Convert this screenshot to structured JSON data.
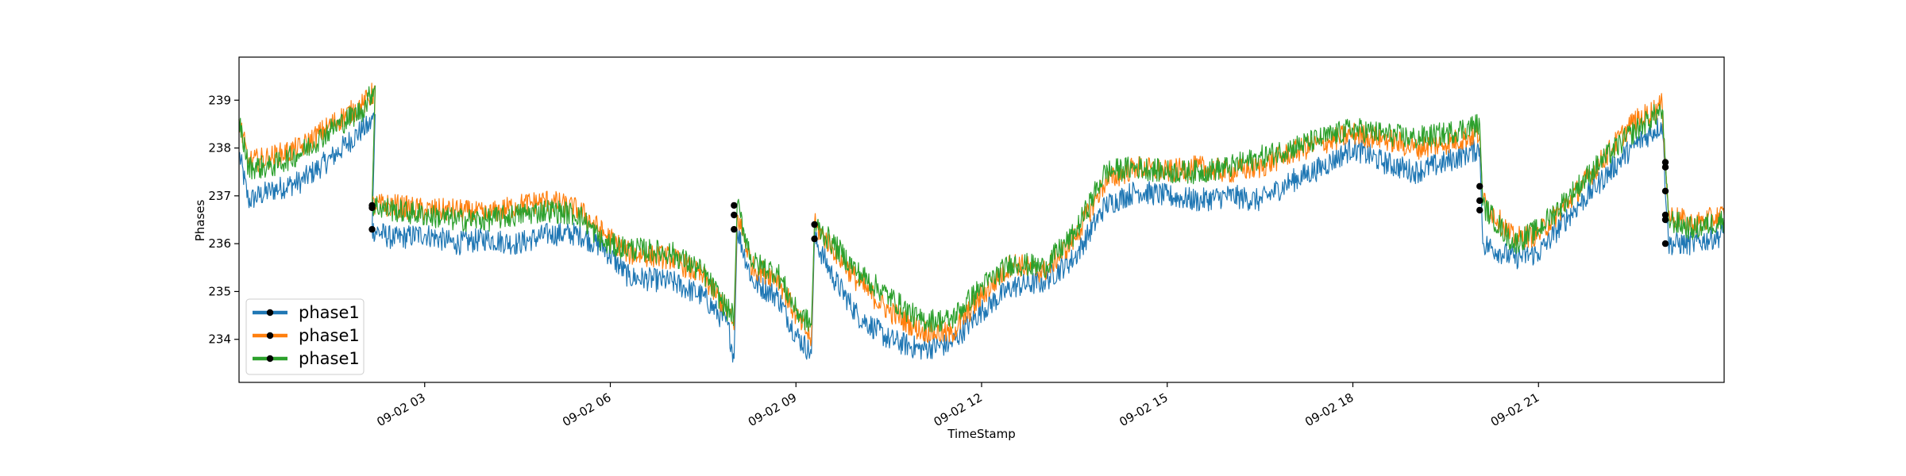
{
  "chart_data": {
    "type": "line",
    "title": "",
    "xlabel": "TimeStamp",
    "ylabel": "Phases",
    "ylim": [
      233.1,
      239.9
    ],
    "x_range": [
      "09-02 00:00",
      "09-03 00:00"
    ],
    "x_ticks": [
      {
        "hour": 3,
        "label": "09-02 03"
      },
      {
        "hour": 6,
        "label": "09-02 06"
      },
      {
        "hour": 9,
        "label": "09-02 09"
      },
      {
        "hour": 12,
        "label": "09-02 12"
      },
      {
        "hour": 15,
        "label": "09-02 15"
      },
      {
        "hour": 18,
        "label": "09-02 18"
      },
      {
        "hour": 21,
        "label": "09-02 21"
      }
    ],
    "y_ticks": [
      234,
      235,
      236,
      237,
      238,
      239
    ],
    "grid": false,
    "legend": {
      "position": "lower-left"
    },
    "series": [
      {
        "name": "phase1",
        "color": "#1f77b4",
        "points": [
          [
            0.0,
            237.9
          ],
          [
            0.15,
            236.9
          ],
          [
            0.5,
            237.1
          ],
          [
            1.0,
            237.3
          ],
          [
            1.5,
            237.8
          ],
          [
            2.0,
            238.4
          ],
          [
            2.1,
            238.45
          ],
          [
            2.2,
            238.7
          ],
          [
            2.15,
            236.3
          ],
          [
            2.5,
            236.1
          ],
          [
            3.0,
            236.2
          ],
          [
            3.5,
            236.0
          ],
          [
            4.0,
            236.1
          ],
          [
            4.5,
            236.0
          ],
          [
            5.0,
            236.2
          ],
          [
            5.5,
            236.2
          ],
          [
            5.9,
            235.9
          ],
          [
            6.3,
            235.3
          ],
          [
            7.0,
            235.2
          ],
          [
            7.5,
            234.9
          ],
          [
            7.9,
            234.3
          ],
          [
            8.0,
            233.6
          ],
          [
            8.05,
            236.3
          ],
          [
            8.3,
            235.2
          ],
          [
            8.7,
            234.9
          ],
          [
            9.0,
            234.1
          ],
          [
            9.25,
            233.7
          ],
          [
            9.3,
            236.1
          ],
          [
            9.6,
            235.3
          ],
          [
            10.0,
            234.5
          ],
          [
            10.5,
            234.0
          ],
          [
            11.0,
            233.8
          ],
          [
            11.5,
            233.9
          ],
          [
            12.0,
            234.6
          ],
          [
            12.5,
            235.1
          ],
          [
            13.0,
            235.2
          ],
          [
            13.5,
            235.7
          ],
          [
            14.0,
            236.8
          ],
          [
            14.5,
            237.1
          ],
          [
            15.0,
            237.0
          ],
          [
            15.5,
            236.9
          ],
          [
            16.0,
            237.0
          ],
          [
            16.5,
            236.9
          ],
          [
            17.0,
            237.3
          ],
          [
            17.5,
            237.6
          ],
          [
            18.0,
            238.0
          ],
          [
            18.5,
            237.7
          ],
          [
            19.0,
            237.5
          ],
          [
            19.5,
            237.7
          ],
          [
            20.05,
            238.0
          ],
          [
            20.1,
            236.0
          ],
          [
            20.6,
            235.7
          ],
          [
            21.0,
            235.8
          ],
          [
            21.5,
            236.6
          ],
          [
            22.0,
            237.3
          ],
          [
            22.5,
            238.0
          ],
          [
            23.0,
            238.5
          ],
          [
            23.1,
            236.0
          ],
          [
            23.5,
            236.0
          ],
          [
            24.0,
            236.2
          ]
        ]
      },
      {
        "name": "phase1",
        "color": "#ff7f0e",
        "points": [
          [
            0.0,
            238.6
          ],
          [
            0.15,
            237.7
          ],
          [
            0.5,
            237.8
          ],
          [
            1.0,
            238.0
          ],
          [
            1.5,
            238.5
          ],
          [
            2.0,
            238.9
          ],
          [
            2.2,
            239.2
          ],
          [
            2.15,
            236.8
          ],
          [
            2.5,
            236.8
          ],
          [
            3.0,
            236.7
          ],
          [
            3.5,
            236.7
          ],
          [
            4.0,
            236.6
          ],
          [
            4.5,
            236.8
          ],
          [
            5.0,
            236.9
          ],
          [
            5.5,
            236.7
          ],
          [
            5.9,
            236.2
          ],
          [
            6.3,
            235.8
          ],
          [
            7.0,
            235.7
          ],
          [
            7.5,
            235.3
          ],
          [
            7.9,
            234.6
          ],
          [
            8.0,
            234.2
          ],
          [
            8.05,
            236.6
          ],
          [
            8.3,
            235.5
          ],
          [
            8.7,
            235.3
          ],
          [
            9.0,
            234.5
          ],
          [
            9.25,
            234.0
          ],
          [
            9.3,
            236.4
          ],
          [
            9.6,
            235.9
          ],
          [
            10.0,
            235.2
          ],
          [
            10.5,
            234.6
          ],
          [
            11.0,
            234.2
          ],
          [
            11.5,
            234.1
          ],
          [
            12.0,
            234.9
          ],
          [
            12.5,
            235.6
          ],
          [
            13.0,
            235.4
          ],
          [
            13.5,
            236.1
          ],
          [
            14.0,
            237.3
          ],
          [
            14.5,
            237.6
          ],
          [
            15.0,
            237.5
          ],
          [
            15.5,
            237.6
          ],
          [
            16.0,
            237.5
          ],
          [
            16.5,
            237.6
          ],
          [
            17.0,
            237.9
          ],
          [
            17.5,
            238.1
          ],
          [
            18.0,
            238.3
          ],
          [
            18.5,
            238.2
          ],
          [
            19.0,
            238.0
          ],
          [
            19.5,
            238.1
          ],
          [
            20.05,
            238.3
          ],
          [
            20.1,
            236.9
          ],
          [
            20.6,
            236.1
          ],
          [
            21.0,
            236.2
          ],
          [
            21.5,
            236.9
          ],
          [
            22.0,
            237.7
          ],
          [
            22.5,
            238.5
          ],
          [
            23.0,
            238.9
          ],
          [
            23.1,
            236.6
          ],
          [
            23.5,
            236.4
          ],
          [
            24.0,
            236.6
          ]
        ]
      },
      {
        "name": "phase1",
        "color": "#2ca02c",
        "points": [
          [
            0.0,
            238.6
          ],
          [
            0.15,
            237.6
          ],
          [
            0.5,
            237.6
          ],
          [
            1.0,
            237.9
          ],
          [
            1.5,
            238.4
          ],
          [
            2.0,
            238.8
          ],
          [
            2.2,
            239.3
          ],
          [
            2.15,
            236.8
          ],
          [
            2.5,
            236.7
          ],
          [
            3.0,
            236.6
          ],
          [
            3.5,
            236.5
          ],
          [
            4.0,
            236.5
          ],
          [
            4.5,
            236.6
          ],
          [
            5.0,
            236.7
          ],
          [
            5.5,
            236.6
          ],
          [
            5.9,
            236.0
          ],
          [
            6.3,
            235.9
          ],
          [
            7.0,
            235.8
          ],
          [
            7.5,
            235.4
          ],
          [
            7.9,
            234.6
          ],
          [
            8.0,
            234.5
          ],
          [
            8.05,
            236.8
          ],
          [
            8.3,
            235.6
          ],
          [
            8.7,
            235.4
          ],
          [
            9.0,
            234.6
          ],
          [
            9.25,
            234.3
          ],
          [
            9.3,
            236.4
          ],
          [
            9.6,
            236.0
          ],
          [
            10.0,
            235.4
          ],
          [
            10.5,
            234.9
          ],
          [
            11.0,
            234.4
          ],
          [
            11.5,
            234.4
          ],
          [
            12.0,
            235.1
          ],
          [
            12.5,
            235.6
          ],
          [
            13.0,
            235.5
          ],
          [
            13.5,
            236.2
          ],
          [
            14.0,
            237.5
          ],
          [
            14.5,
            237.6
          ],
          [
            15.0,
            237.5
          ],
          [
            15.5,
            237.5
          ],
          [
            16.0,
            237.6
          ],
          [
            16.5,
            237.8
          ],
          [
            17.0,
            238.0
          ],
          [
            17.5,
            238.2
          ],
          [
            18.0,
            238.4
          ],
          [
            18.5,
            238.3
          ],
          [
            19.0,
            238.2
          ],
          [
            19.5,
            238.3
          ],
          [
            20.05,
            238.5
          ],
          [
            20.1,
            236.8
          ],
          [
            20.6,
            236.0
          ],
          [
            21.0,
            236.3
          ],
          [
            21.5,
            237.0
          ],
          [
            22.0,
            237.7
          ],
          [
            22.5,
            238.3
          ],
          [
            23.0,
            238.8
          ],
          [
            23.1,
            236.5
          ],
          [
            23.5,
            236.3
          ],
          [
            24.0,
            236.5
          ]
        ]
      }
    ],
    "markers": [
      {
        "x": 2.15,
        "y": 236.3
      },
      {
        "x": 2.15,
        "y": 236.8
      },
      {
        "x": 2.15,
        "y": 236.75
      },
      {
        "x": 8.0,
        "y": 236.3
      },
      {
        "x": 8.0,
        "y": 236.6
      },
      {
        "x": 8.0,
        "y": 236.8
      },
      {
        "x": 9.3,
        "y": 236.1
      },
      {
        "x": 9.3,
        "y": 236.4
      },
      {
        "x": 20.05,
        "y": 236.7
      },
      {
        "x": 20.05,
        "y": 236.9
      },
      {
        "x": 20.05,
        "y": 237.2
      },
      {
        "x": 23.05,
        "y": 236.0
      },
      {
        "x": 23.05,
        "y": 236.5
      },
      {
        "x": 23.05,
        "y": 236.6
      },
      {
        "x": 23.05,
        "y": 237.1
      },
      {
        "x": 23.05,
        "y": 237.6
      },
      {
        "x": 23.05,
        "y": 237.7
      }
    ]
  }
}
